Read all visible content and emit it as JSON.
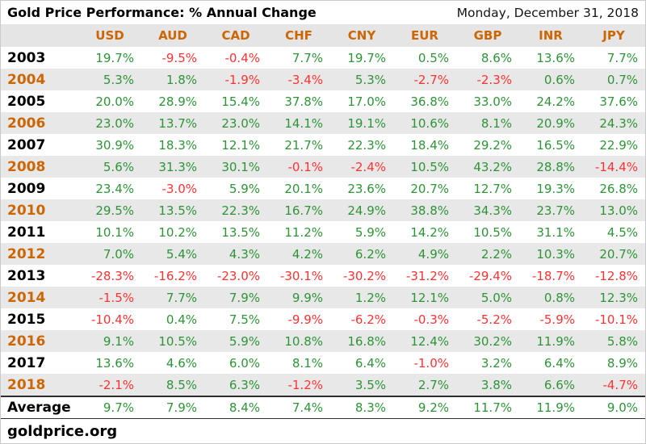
{
  "header": {
    "title": "Gold Price Performance: % Annual Change",
    "date": "Monday, December 31, 2018"
  },
  "footer": {
    "brand": "goldprice.org"
  },
  "colors": {
    "accent_orange": "#cc6600",
    "positive_green": "#2e9437",
    "negative_red": "#ff3232",
    "header_bg": "#e5e5e5",
    "stripe_bg": "#e8e8e8",
    "rule_dark": "#2f2f2f"
  },
  "chart_data": {
    "type": "table",
    "title": "Gold Price Performance: % Annual Change",
    "columns": [
      "USD",
      "AUD",
      "CAD",
      "CHF",
      "CNY",
      "EUR",
      "GBP",
      "INR",
      "JPY"
    ],
    "rows": [
      {
        "year": "2003",
        "orange": false,
        "shaded": false,
        "values": [
          "19.7%",
          "-9.5%",
          "-0.4%",
          "7.7%",
          "19.7%",
          "0.5%",
          "8.6%",
          "13.6%",
          "7.7%"
        ]
      },
      {
        "year": "2004",
        "orange": true,
        "shaded": true,
        "values": [
          "5.3%",
          "1.8%",
          "-1.9%",
          "-3.4%",
          "5.3%",
          "-2.7%",
          "-2.3%",
          "0.6%",
          "0.7%"
        ]
      },
      {
        "year": "2005",
        "orange": false,
        "shaded": false,
        "values": [
          "20.0%",
          "28.9%",
          "15.4%",
          "37.8%",
          "17.0%",
          "36.8%",
          "33.0%",
          "24.2%",
          "37.6%"
        ]
      },
      {
        "year": "2006",
        "orange": true,
        "shaded": true,
        "values": [
          "23.0%",
          "13.7%",
          "23.0%",
          "14.1%",
          "19.1%",
          "10.6%",
          "8.1%",
          "20.9%",
          "24.3%"
        ]
      },
      {
        "year": "2007",
        "orange": false,
        "shaded": false,
        "values": [
          "30.9%",
          "18.3%",
          "12.1%",
          "21.7%",
          "22.3%",
          "18.4%",
          "29.2%",
          "16.5%",
          "22.9%"
        ]
      },
      {
        "year": "2008",
        "orange": true,
        "shaded": true,
        "values": [
          "5.6%",
          "31.3%",
          "30.1%",
          "-0.1%",
          "-2.4%",
          "10.5%",
          "43.2%",
          "28.8%",
          "-14.4%"
        ]
      },
      {
        "year": "2009",
        "orange": false,
        "shaded": false,
        "values": [
          "23.4%",
          "-3.0%",
          "5.9%",
          "20.1%",
          "23.6%",
          "20.7%",
          "12.7%",
          "19.3%",
          "26.8%"
        ]
      },
      {
        "year": "2010",
        "orange": true,
        "shaded": true,
        "values": [
          "29.5%",
          "13.5%",
          "22.3%",
          "16.7%",
          "24.9%",
          "38.8%",
          "34.3%",
          "23.7%",
          "13.0%"
        ]
      },
      {
        "year": "2011",
        "orange": false,
        "shaded": false,
        "values": [
          "10.1%",
          "10.2%",
          "13.5%",
          "11.2%",
          "5.9%",
          "14.2%",
          "10.5%",
          "31.1%",
          "4.5%"
        ]
      },
      {
        "year": "2012",
        "orange": true,
        "shaded": true,
        "values": [
          "7.0%",
          "5.4%",
          "4.3%",
          "4.2%",
          "6.2%",
          "4.9%",
          "2.2%",
          "10.3%",
          "20.7%"
        ]
      },
      {
        "year": "2013",
        "orange": false,
        "shaded": false,
        "values": [
          "-28.3%",
          "-16.2%",
          "-23.0%",
          "-30.1%",
          "-30.2%",
          "-31.2%",
          "-29.4%",
          "-18.7%",
          "-12.8%"
        ]
      },
      {
        "year": "2014",
        "orange": true,
        "shaded": true,
        "values": [
          "-1.5%",
          "7.7%",
          "7.9%",
          "9.9%",
          "1.2%",
          "12.1%",
          "5.0%",
          "0.8%",
          "12.3%"
        ]
      },
      {
        "year": "2015",
        "orange": false,
        "shaded": false,
        "values": [
          "-10.4%",
          "0.4%",
          "7.5%",
          "-9.9%",
          "-6.2%",
          "-0.3%",
          "-5.2%",
          "-5.9%",
          "-10.1%"
        ]
      },
      {
        "year": "2016",
        "orange": true,
        "shaded": true,
        "values": [
          "9.1%",
          "10.5%",
          "5.9%",
          "10.8%",
          "16.8%",
          "12.4%",
          "30.2%",
          "11.9%",
          "5.8%"
        ]
      },
      {
        "year": "2017",
        "orange": false,
        "shaded": false,
        "values": [
          "13.6%",
          "4.6%",
          "6.0%",
          "8.1%",
          "6.4%",
          "-1.0%",
          "3.2%",
          "6.4%",
          "8.9%"
        ]
      },
      {
        "year": "2018",
        "orange": true,
        "shaded": true,
        "values": [
          "-2.1%",
          "8.5%",
          "6.3%",
          "-1.2%",
          "3.5%",
          "2.7%",
          "3.8%",
          "6.6%",
          "-4.7%"
        ]
      }
    ],
    "average": {
      "label": "Average",
      "values": [
        "9.7%",
        "7.9%",
        "8.4%",
        "7.4%",
        "8.3%",
        "9.2%",
        "11.7%",
        "11.9%",
        "9.0%"
      ]
    }
  }
}
